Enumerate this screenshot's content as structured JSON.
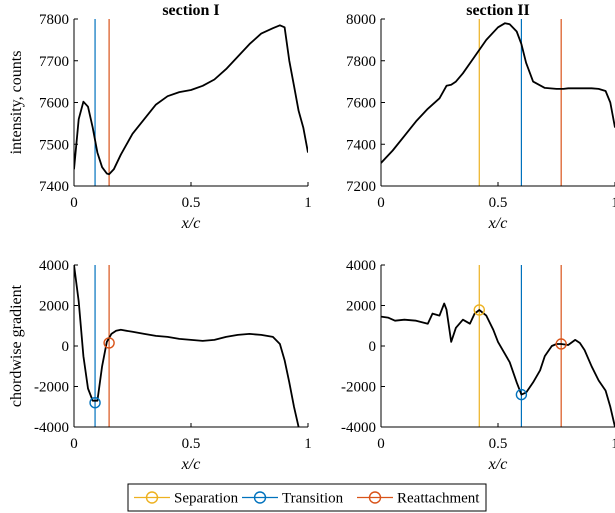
{
  "colors": {
    "separation": "#EDB120",
    "transition": "#0072BD",
    "reattachment": "#D95319",
    "curve": "#000000"
  },
  "legend": {
    "placement": "bottom-center",
    "items": [
      {
        "key": "separation",
        "label": "Separation"
      },
      {
        "key": "transition",
        "label": "Transition"
      },
      {
        "key": "reattachment",
        "label": "Reattachment"
      }
    ]
  },
  "chart_data": [
    {
      "type": "line",
      "title": "section I",
      "xlabel": "x/c",
      "ylabel": "intensity, counts",
      "xlim": [
        0,
        1
      ],
      "ylim": [
        7400,
        7800
      ],
      "xticks": [
        0,
        0.5,
        1
      ],
      "yticks": [
        7400,
        7500,
        7600,
        7700,
        7800
      ],
      "grid": false,
      "markers": {
        "transition": 0.09,
        "reattachment": 0.15
      },
      "series": [
        {
          "x": [
            0,
            0.02,
            0.04,
            0.06,
            0.08,
            0.1,
            0.12,
            0.14,
            0.15,
            0.17,
            0.2,
            0.25,
            0.3,
            0.35,
            0.4,
            0.45,
            0.5,
            0.55,
            0.6,
            0.65,
            0.7,
            0.75,
            0.8,
            0.85,
            0.88,
            0.9,
            0.92,
            0.94,
            0.96,
            0.98,
            1.0
          ],
          "y": [
            7440,
            7560,
            7602,
            7590,
            7540,
            7480,
            7445,
            7430,
            7428,
            7440,
            7475,
            7525,
            7560,
            7595,
            7615,
            7625,
            7630,
            7640,
            7655,
            7680,
            7710,
            7740,
            7765,
            7778,
            7785,
            7780,
            7700,
            7640,
            7580,
            7540,
            7480
          ]
        }
      ]
    },
    {
      "type": "line",
      "title": "section II",
      "xlabel": "x/c",
      "ylabel": "",
      "xlim": [
        0,
        1
      ],
      "ylim": [
        7200,
        8000
      ],
      "xticks": [
        0,
        0.5,
        1
      ],
      "yticks": [
        7200,
        7400,
        7600,
        7800,
        8000
      ],
      "grid": false,
      "markers": {
        "separation": 0.42,
        "transition": 0.6,
        "reattachment": 0.77
      },
      "series": [
        {
          "x": [
            0,
            0.05,
            0.1,
            0.15,
            0.2,
            0.25,
            0.28,
            0.3,
            0.32,
            0.35,
            0.4,
            0.45,
            0.5,
            0.53,
            0.55,
            0.58,
            0.6,
            0.62,
            0.65,
            0.7,
            0.75,
            0.78,
            0.8,
            0.85,
            0.9,
            0.93,
            0.96,
            0.98,
            1.0
          ],
          "y": [
            7310,
            7370,
            7440,
            7510,
            7570,
            7620,
            7680,
            7685,
            7700,
            7740,
            7820,
            7900,
            7960,
            7980,
            7975,
            7940,
            7880,
            7790,
            7700,
            7670,
            7665,
            7665,
            7668,
            7668,
            7668,
            7665,
            7655,
            7600,
            7480
          ]
        }
      ]
    },
    {
      "type": "line",
      "title": "",
      "xlabel": "x/c",
      "ylabel": "chordwise gradient",
      "xlim": [
        0,
        1
      ],
      "ylim": [
        -4000,
        4000
      ],
      "xticks": [
        0,
        0.5,
        1
      ],
      "yticks": [
        -4000,
        -2000,
        0,
        2000,
        4000
      ],
      "grid": false,
      "markers": {
        "transition": 0.09,
        "reattachment": 0.15
      },
      "points": [
        {
          "key": "transition",
          "x": 0.09,
          "y": -2800
        },
        {
          "key": "reattachment",
          "x": 0.15,
          "y": 150
        }
      ],
      "series": [
        {
          "x": [
            0,
            0.02,
            0.04,
            0.06,
            0.08,
            0.1,
            0.12,
            0.14,
            0.16,
            0.18,
            0.2,
            0.25,
            0.3,
            0.35,
            0.4,
            0.45,
            0.5,
            0.55,
            0.6,
            0.65,
            0.7,
            0.75,
            0.8,
            0.85,
            0.88,
            0.9,
            0.92,
            0.94,
            0.96
          ],
          "y": [
            4000,
            2200,
            -500,
            -2100,
            -2700,
            -2700,
            -1000,
            200,
            600,
            750,
            800,
            700,
            600,
            500,
            450,
            350,
            300,
            250,
            300,
            450,
            550,
            600,
            550,
            450,
            100,
            -700,
            -1800,
            -3000,
            -4000
          ]
        }
      ]
    },
    {
      "type": "line",
      "title": "",
      "xlabel": "x/c",
      "ylabel": "",
      "xlim": [
        0,
        1
      ],
      "ylim": [
        -4000,
        4000
      ],
      "xticks": [
        0,
        0.5,
        1
      ],
      "yticks": [
        -4000,
        -2000,
        0,
        2000,
        4000
      ],
      "grid": false,
      "markers": {
        "separation": 0.42,
        "transition": 0.6,
        "reattachment": 0.77
      },
      "points": [
        {
          "key": "separation",
          "x": 0.42,
          "y": 1780
        },
        {
          "key": "transition",
          "x": 0.6,
          "y": -2400
        },
        {
          "key": "reattachment",
          "x": 0.77,
          "y": 100
        }
      ],
      "series": [
        {
          "x": [
            0,
            0.03,
            0.06,
            0.1,
            0.15,
            0.2,
            0.22,
            0.25,
            0.27,
            0.28,
            0.3,
            0.32,
            0.35,
            0.38,
            0.4,
            0.42,
            0.45,
            0.48,
            0.5,
            0.55,
            0.58,
            0.6,
            0.62,
            0.65,
            0.68,
            0.7,
            0.73,
            0.75,
            0.77,
            0.8,
            0.83,
            0.85,
            0.87,
            0.9,
            0.93,
            0.96,
            0.98,
            1.0
          ],
          "y": [
            1450,
            1400,
            1250,
            1300,
            1250,
            1100,
            1600,
            1500,
            2100,
            1800,
            200,
            900,
            1300,
            1100,
            1600,
            1780,
            1500,
            800,
            200,
            -800,
            -1800,
            -2400,
            -2300,
            -1800,
            -1200,
            -500,
            0,
            100,
            100,
            50,
            300,
            150,
            -200,
            -1000,
            -1700,
            -2200,
            -3000,
            -4000
          ]
        }
      ]
    }
  ]
}
